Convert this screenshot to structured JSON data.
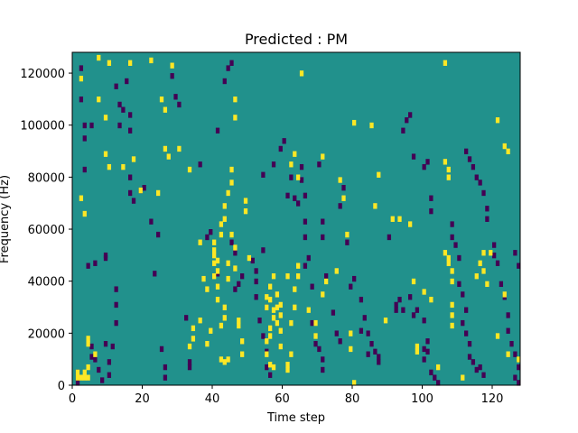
{
  "chart_data": {
    "type": "heatmap",
    "title": "Predicted : PM",
    "xlabel": "Time step",
    "ylabel": "Frequency (Hz)",
    "xlim": [
      0,
      128
    ],
    "ylim": [
      0,
      128000
    ],
    "x_ticks": [
      0,
      20,
      40,
      60,
      80,
      100,
      120
    ],
    "x_tick_labels": [
      "0",
      "20",
      "40",
      "60",
      "80",
      "100",
      "120"
    ],
    "y_ticks": [
      0,
      20000,
      40000,
      60000,
      80000,
      100000,
      120000
    ],
    "y_tick_labels": [
      "0",
      "20000",
      "40000",
      "60000",
      "80000",
      "100000",
      "120000"
    ],
    "grid_shape": [
      128,
      128
    ],
    "value_levels": {
      "low": -1,
      "background": 0,
      "high": 1
    },
    "colors": {
      "low": "#440154",
      "background": "#21918c",
      "high": "#fde725"
    },
    "high_cells": [
      [
        1,
        3
      ],
      [
        2,
        3
      ],
      [
        3,
        3
      ],
      [
        4,
        3
      ],
      [
        1,
        5
      ],
      [
        3,
        5
      ],
      [
        4,
        7
      ],
      [
        4,
        18
      ],
      [
        4,
        16
      ],
      [
        6,
        12
      ],
      [
        7,
        126
      ],
      [
        10,
        124
      ],
      [
        16,
        124
      ],
      [
        22,
        125
      ],
      [
        28,
        123
      ],
      [
        9,
        103
      ],
      [
        7,
        110
      ],
      [
        2,
        118
      ],
      [
        3,
        66
      ],
      [
        2,
        72
      ],
      [
        9,
        89
      ],
      [
        10,
        84
      ],
      [
        17,
        87
      ],
      [
        26,
        91
      ],
      [
        27,
        88
      ],
      [
        30,
        91
      ],
      [
        33,
        83
      ],
      [
        25,
        110
      ],
      [
        26,
        106
      ],
      [
        46,
        110
      ],
      [
        46,
        103
      ],
      [
        14,
        84
      ],
      [
        19,
        75
      ],
      [
        24,
        74
      ],
      [
        36,
        55
      ],
      [
        37,
        41
      ],
      [
        38,
        37
      ],
      [
        40,
        42
      ],
      [
        40,
        47
      ],
      [
        40,
        50
      ],
      [
        40,
        52
      ],
      [
        40,
        55
      ],
      [
        41,
        48
      ],
      [
        41,
        44
      ],
      [
        41,
        38
      ],
      [
        41,
        33
      ],
      [
        42,
        62
      ],
      [
        42,
        58
      ],
      [
        43,
        64
      ],
      [
        43,
        69
      ],
      [
        43,
        30
      ],
      [
        43,
        26
      ],
      [
        42,
        23
      ],
      [
        42,
        10
      ],
      [
        43,
        9
      ],
      [
        44,
        10
      ],
      [
        44,
        47
      ],
      [
        44,
        41
      ],
      [
        45,
        83
      ],
      [
        45,
        78
      ],
      [
        44,
        74
      ],
      [
        45,
        58
      ],
      [
        46,
        53
      ],
      [
        46,
        45
      ],
      [
        47,
        25
      ],
      [
        48,
        17
      ],
      [
        48,
        12
      ],
      [
        47,
        23
      ],
      [
        49,
        67
      ],
      [
        49,
        71
      ],
      [
        50,
        49
      ],
      [
        39,
        21
      ],
      [
        38,
        16
      ],
      [
        36,
        25
      ],
      [
        34,
        22
      ],
      [
        34,
        18
      ],
      [
        33,
        15
      ],
      [
        55,
        34
      ],
      [
        55,
        30
      ],
      [
        56,
        33
      ],
      [
        57,
        29
      ],
      [
        57,
        26
      ],
      [
        56,
        22
      ],
      [
        56,
        19
      ],
      [
        55,
        17
      ],
      [
        55,
        12
      ],
      [
        56,
        8
      ],
      [
        57,
        7
      ],
      [
        58,
        35
      ],
      [
        58,
        30
      ],
      [
        58,
        24
      ],
      [
        59,
        31
      ],
      [
        59,
        27
      ],
      [
        59,
        21
      ],
      [
        59,
        15
      ],
      [
        57,
        42
      ],
      [
        56,
        38
      ],
      [
        61,
        42
      ],
      [
        61,
        6
      ],
      [
        61,
        8
      ],
      [
        62,
        12
      ],
      [
        62,
        24
      ],
      [
        63,
        30
      ],
      [
        63,
        37
      ],
      [
        64,
        42
      ],
      [
        64,
        46
      ],
      [
        62,
        85
      ],
      [
        63,
        89
      ],
      [
        64,
        80
      ],
      [
        65,
        120
      ],
      [
        71,
        88
      ],
      [
        67,
        29
      ],
      [
        69,
        19
      ],
      [
        69,
        24
      ],
      [
        71,
        35
      ],
      [
        72,
        40
      ],
      [
        75,
        44
      ],
      [
        76,
        79
      ],
      [
        77,
        72
      ],
      [
        78,
        58
      ],
      [
        79,
        20
      ],
      [
        79,
        14
      ],
      [
        80,
        1
      ],
      [
        80,
        101
      ],
      [
        85,
        100
      ],
      [
        86,
        69
      ],
      [
        87,
        81
      ],
      [
        91,
        64
      ],
      [
        93,
        64
      ],
      [
        89,
        25
      ],
      [
        96,
        62
      ],
      [
        97,
        40
      ],
      [
        98,
        15
      ],
      [
        98,
        13
      ],
      [
        100,
        36
      ],
      [
        102,
        33
      ],
      [
        104,
        7
      ],
      [
        106,
        86
      ],
      [
        107,
        83
      ],
      [
        107,
        80
      ],
      [
        106,
        51
      ],
      [
        107,
        49
      ],
      [
        107,
        47
      ],
      [
        108,
        44
      ],
      [
        108,
        40
      ],
      [
        108,
        31
      ],
      [
        108,
        27
      ],
      [
        108,
        23
      ],
      [
        106,
        124
      ],
      [
        111,
        3
      ],
      [
        115,
        42
      ],
      [
        116,
        47
      ],
      [
        117,
        51
      ],
      [
        117,
        44
      ],
      [
        121,
        102
      ],
      [
        123,
        92
      ],
      [
        124,
        90
      ],
      [
        118,
        39
      ],
      [
        121,
        19
      ],
      [
        124,
        12
      ],
      [
        127,
        10
      ],
      [
        119,
        51
      ],
      [
        123,
        35
      ]
    ],
    "low_cells": [
      [
        1,
        1
      ],
      [
        1,
        3
      ],
      [
        1,
        5
      ],
      [
        2,
        110
      ],
      [
        2,
        122
      ],
      [
        3,
        100
      ],
      [
        3,
        95
      ],
      [
        3,
        83
      ],
      [
        4,
        46
      ],
      [
        5,
        100
      ],
      [
        6,
        47
      ],
      [
        5,
        15
      ],
      [
        5,
        11
      ],
      [
        6,
        10
      ],
      [
        7,
        6
      ],
      [
        8,
        2
      ],
      [
        9,
        16
      ],
      [
        9,
        49
      ],
      [
        9,
        50
      ],
      [
        10,
        9
      ],
      [
        10,
        4
      ],
      [
        11,
        15
      ],
      [
        12,
        24
      ],
      [
        12,
        115
      ],
      [
        13,
        108
      ],
      [
        13,
        100
      ],
      [
        16,
        98
      ],
      [
        16,
        104
      ],
      [
        14,
        106
      ],
      [
        15,
        117
      ],
      [
        12,
        31
      ],
      [
        12,
        37
      ],
      [
        16,
        80
      ],
      [
        16,
        74
      ],
      [
        17,
        71
      ],
      [
        19,
        75
      ],
      [
        20,
        76
      ],
      [
        22,
        63
      ],
      [
        23,
        43
      ],
      [
        24,
        58
      ],
      [
        25,
        14
      ],
      [
        26,
        3
      ],
      [
        26,
        7
      ],
      [
        28,
        119
      ],
      [
        29,
        111
      ],
      [
        30,
        108
      ],
      [
        32,
        26
      ],
      [
        33,
        7
      ],
      [
        33,
        9
      ],
      [
        36,
        85
      ],
      [
        38,
        57
      ],
      [
        39,
        59
      ],
      [
        41,
        43
      ],
      [
        41,
        98
      ],
      [
        43,
        117
      ],
      [
        44,
        122
      ],
      [
        45,
        124
      ],
      [
        45,
        55
      ],
      [
        46,
        51
      ],
      [
        46,
        37
      ],
      [
        47,
        39
      ],
      [
        48,
        42
      ],
      [
        51,
        48
      ],
      [
        52,
        44
      ],
      [
        52,
        40
      ],
      [
        52,
        34
      ],
      [
        53,
        25
      ],
      [
        54,
        19
      ],
      [
        55,
        13
      ],
      [
        55,
        7
      ],
      [
        56,
        4
      ],
      [
        55,
        30
      ],
      [
        54,
        52
      ],
      [
        54,
        81
      ],
      [
        57,
        85
      ],
      [
        59,
        91
      ],
      [
        60,
        94
      ],
      [
        61,
        73
      ],
      [
        62,
        80
      ],
      [
        63,
        72
      ],
      [
        64,
        70
      ],
      [
        65,
        79
      ],
      [
        65,
        84
      ],
      [
        66,
        73
      ],
      [
        66,
        63
      ],
      [
        66,
        57
      ],
      [
        67,
        49
      ],
      [
        66,
        46
      ],
      [
        68,
        38
      ],
      [
        68,
        24
      ],
      [
        69,
        16
      ],
      [
        70,
        14
      ],
      [
        71,
        10
      ],
      [
        71,
        6
      ],
      [
        70,
        85
      ],
      [
        71,
        63
      ],
      [
        71,
        57
      ],
      [
        72,
        42
      ],
      [
        74,
        28
      ],
      [
        75,
        20
      ],
      [
        76,
        17
      ],
      [
        76,
        69
      ],
      [
        77,
        76
      ],
      [
        78,
        55
      ],
      [
        79,
        38
      ],
      [
        80,
        41
      ],
      [
        82,
        33
      ],
      [
        82,
        21
      ],
      [
        83,
        26
      ],
      [
        84,
        20
      ],
      [
        84,
        12
      ],
      [
        85,
        16
      ],
      [
        86,
        13
      ],
      [
        87,
        11
      ],
      [
        87,
        9
      ],
      [
        90,
        57
      ],
      [
        92,
        29
      ],
      [
        92,
        31
      ],
      [
        93,
        33
      ],
      [
        94,
        29
      ],
      [
        96,
        34
      ],
      [
        97,
        27
      ],
      [
        98,
        29
      ],
      [
        100,
        25
      ],
      [
        100,
        14
      ],
      [
        101,
        17
      ],
      [
        101,
        13
      ],
      [
        100,
        10
      ],
      [
        102,
        5
      ],
      [
        103,
        3
      ],
      [
        104,
        1
      ],
      [
        94,
        98
      ],
      [
        95,
        102
      ],
      [
        96,
        104
      ],
      [
        97,
        88
      ],
      [
        100,
        84
      ],
      [
        101,
        86
      ],
      [
        102,
        67
      ],
      [
        102,
        72
      ],
      [
        108,
        62
      ],
      [
        108,
        57
      ],
      [
        109,
        54
      ],
      [
        110,
        49
      ],
      [
        110,
        39
      ],
      [
        111,
        35
      ],
      [
        112,
        29
      ],
      [
        111,
        24
      ],
      [
        112,
        20
      ],
      [
        113,
        16
      ],
      [
        113,
        11
      ],
      [
        114,
        9
      ],
      [
        115,
        6
      ],
      [
        116,
        7
      ],
      [
        117,
        4
      ],
      [
        112,
        90
      ],
      [
        113,
        87
      ],
      [
        114,
        84
      ],
      [
        115,
        80
      ],
      [
        116,
        78
      ],
      [
        117,
        74
      ],
      [
        118,
        68
      ],
      [
        118,
        64
      ],
      [
        120,
        54
      ],
      [
        120,
        50
      ],
      [
        121,
        47
      ],
      [
        122,
        39
      ],
      [
        123,
        34
      ],
      [
        124,
        27
      ],
      [
        124,
        21
      ],
      [
        125,
        16
      ],
      [
        126,
        12
      ],
      [
        127,
        7
      ],
      [
        126,
        3
      ],
      [
        127,
        1
      ],
      [
        126,
        51
      ],
      [
        127,
        46
      ]
    ]
  }
}
